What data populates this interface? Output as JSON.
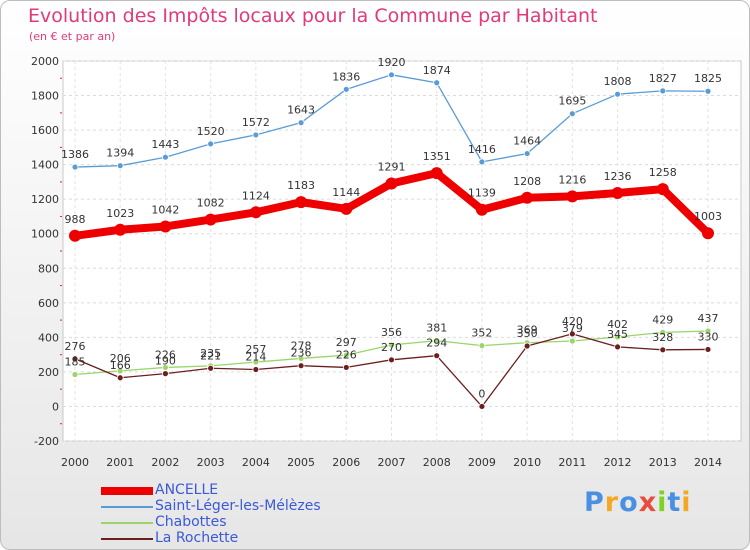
{
  "title": "Evolution des Impôts locaux pour la Commune par Habitant",
  "subtitle": "(en € et par an)",
  "logo": {
    "text": "Proxiti",
    "letters": [
      "P",
      "r",
      "o",
      "x",
      "i",
      "t",
      "i"
    ],
    "colors": [
      "#4a90e2",
      "#f5a623",
      "#4a90e2",
      "#e74c3c",
      "#7ed321",
      "#4a90e2",
      "#f5a623"
    ]
  },
  "chart_data": {
    "type": "line",
    "title": "Evolution des Impôts locaux pour la Commune par Habitant",
    "subtitle": "(en € et par an)",
    "xlabel": "",
    "ylabel": "",
    "ylim": [
      -200,
      2000
    ],
    "yticks": [
      -200,
      0,
      200,
      400,
      600,
      800,
      1000,
      1200,
      1400,
      1600,
      1800,
      2000
    ],
    "x": [
      2000,
      2001,
      2002,
      2003,
      2004,
      2005,
      2006,
      2007,
      2008,
      2009,
      2010,
      2011,
      2012,
      2013,
      2014
    ],
    "grid": true,
    "legend_position": "bottom-left",
    "series": [
      {
        "name": "ANCELLE",
        "color": "#ee0000",
        "width": "thick",
        "values": [
          988,
          1023,
          1042,
          1082,
          1124,
          1183,
          1144,
          1291,
          1351,
          1139,
          1208,
          1216,
          1236,
          1258,
          1003
        ],
        "labels": [
          "988",
          "1023",
          "1042",
          "1082",
          "1124",
          "1183",
          "1144",
          "1291",
          "1351",
          "1139",
          "1208",
          "1216",
          "1236",
          "1258",
          "1003"
        ]
      },
      {
        "name": "Saint-Léger-les-Mélèzes",
        "color": "#5a9bd5",
        "width": "thin",
        "values": [
          1386,
          1394,
          1443,
          1520,
          1572,
          1643,
          1836,
          1920,
          1874,
          1416,
          1464,
          1695,
          1808,
          1827,
          1825
        ],
        "labels": [
          "1386",
          "1394",
          "1443",
          "1520",
          "1572",
          "1643",
          "1836",
          "1920",
          "1874",
          "1416",
          "1464",
          "1695",
          "1808",
          "1827",
          "1825"
        ]
      },
      {
        "name": "Chabottes",
        "color": "#9ad46a",
        "width": "thin",
        "values": [
          185,
          206,
          226,
          235,
          257,
          278,
          297,
          356,
          381,
          352,
          369,
          379,
          402,
          429,
          437
        ],
        "labels": [
          "185",
          "206",
          "226",
          "235",
          "257",
          "278",
          "297",
          "356",
          "381",
          "352",
          "369",
          "379",
          "402",
          "429",
          "437"
        ]
      },
      {
        "name": "La Rochette",
        "color": "#6b1f1f",
        "width": "thin",
        "values": [
          276,
          166,
          190,
          221,
          214,
          236,
          226,
          270,
          294,
          0,
          350,
          420,
          345,
          328,
          330
        ],
        "labels": [
          "276",
          "166",
          "190",
          "221",
          "214",
          "236",
          "226",
          "270",
          "294",
          "0",
          "350",
          "420",
          "345",
          "328",
          "330"
        ]
      }
    ]
  }
}
